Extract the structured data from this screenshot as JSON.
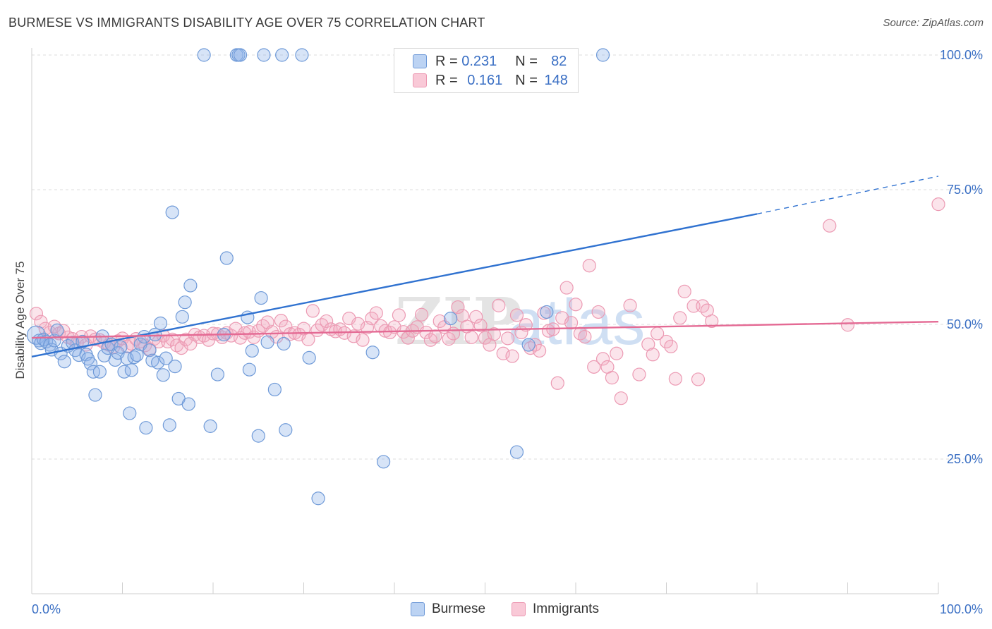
{
  "header": {
    "title": "BURMESE VS IMMIGRANTS DISABILITY AGE OVER 75 CORRELATION CHART",
    "source": "Source: ZipAtlas.com"
  },
  "legend": {
    "burmese": {
      "r_label": "R =",
      "r_value": "0.231",
      "n_label": "N =",
      "n_value": "82"
    },
    "immigrants": {
      "r_label": "R =",
      "r_value": "0.161",
      "n_label": "N =",
      "n_value": "148"
    }
  },
  "bottom_legend": {
    "burmese": "Burmese",
    "immigrants": "Immigrants"
  },
  "watermark": {
    "zip": "ZIP",
    "atlas": "atlas"
  },
  "colors": {
    "burmese": "#5b8fd9",
    "immigrants": "#ee8aa8",
    "blue_line": "#3072d0",
    "pink_line": "#e46a94",
    "tick_text": "#3a6fc4"
  },
  "chart_data": {
    "type": "scatter",
    "title": "BURMESE VS IMMIGRANTS DISABILITY AGE OVER 75 CORRELATION CHART",
    "xlabel": "",
    "ylabel": "Disability Age Over 75",
    "xlim": [
      0,
      100
    ],
    "ylim": [
      0,
      105
    ],
    "x_tick_labels": [
      "0.0%",
      "100.0%"
    ],
    "y_ticks": [
      25,
      50,
      75,
      100
    ],
    "y_tick_labels": [
      "25.0%",
      "50.0%",
      "75.0%",
      "100.0%"
    ],
    "grid": true,
    "legend_position": "top-center",
    "series": [
      {
        "name": "Burmese",
        "r": 0.231,
        "n": 82,
        "trend": {
          "x": [
            0,
            80,
            100
          ],
          "y": [
            44.0,
            70.5,
            77.5
          ],
          "dashed_from": 80
        },
        "points": [
          [
            0.5,
            48
          ],
          [
            0.8,
            47
          ],
          [
            1.0,
            46.5
          ],
          [
            1.3,
            47.2
          ],
          [
            1.6,
            46.8
          ],
          [
            2.0,
            46.2
          ],
          [
            2.2,
            45.3
          ],
          [
            2.5,
            47
          ],
          [
            2.8,
            48.9
          ],
          [
            3.2,
            44.6
          ],
          [
            3.6,
            43.1
          ],
          [
            4.0,
            46
          ],
          [
            4.5,
            46.6
          ],
          [
            4.8,
            45.2
          ],
          [
            5.2,
            44.3
          ],
          [
            5.6,
            46.8
          ],
          [
            6.0,
            44.4
          ],
          [
            6.2,
            43.6
          ],
          [
            6.5,
            42.7
          ],
          [
            6.8,
            41.2
          ],
          [
            7.0,
            36.9
          ],
          [
            7.5,
            41.2
          ],
          [
            7.8,
            47.8
          ],
          [
            8.0,
            44.2
          ],
          [
            8.4,
            45.6
          ],
          [
            8.8,
            46.3
          ],
          [
            9.2,
            43.4
          ],
          [
            9.5,
            44.7
          ],
          [
            9.8,
            45.8
          ],
          [
            10.2,
            41.2
          ],
          [
            10.5,
            43.7
          ],
          [
            10.8,
            33.5
          ],
          [
            11.0,
            41.5
          ],
          [
            11.3,
            43.9
          ],
          [
            11.6,
            44.3
          ],
          [
            12.0,
            46.3
          ],
          [
            12.4,
            47.7
          ],
          [
            12.6,
            30.8
          ],
          [
            13.0,
            45.2
          ],
          [
            13.3,
            43.3
          ],
          [
            13.6,
            48.1
          ],
          [
            13.9,
            42.9
          ],
          [
            14.2,
            50.2
          ],
          [
            14.5,
            40.6
          ],
          [
            14.8,
            43.7
          ],
          [
            15.2,
            31.3
          ],
          [
            15.5,
            70.8
          ],
          [
            15.8,
            42.2
          ],
          [
            16.2,
            36.2
          ],
          [
            16.6,
            51.4
          ],
          [
            16.9,
            54.1
          ],
          [
            17.3,
            35.2
          ],
          [
            17.5,
            57.2
          ],
          [
            19.0,
            100
          ],
          [
            19.7,
            31.1
          ],
          [
            20.5,
            40.7
          ],
          [
            21.2,
            48.1
          ],
          [
            21.5,
            62.3
          ],
          [
            22.6,
            100
          ],
          [
            22.8,
            100
          ],
          [
            23.0,
            100
          ],
          [
            23.8,
            51.3
          ],
          [
            24.0,
            41.6
          ],
          [
            24.3,
            45.1
          ],
          [
            25.0,
            29.3
          ],
          [
            25.3,
            54.9
          ],
          [
            25.6,
            100
          ],
          [
            26.0,
            46.7
          ],
          [
            26.8,
            37.9
          ],
          [
            27.6,
            100
          ],
          [
            27.8,
            46.4
          ],
          [
            28.0,
            30.4
          ],
          [
            29.8,
            100
          ],
          [
            30.6,
            43.8
          ],
          [
            31.6,
            17.7
          ],
          [
            37.6,
            44.8
          ],
          [
            38.8,
            24.5
          ],
          [
            46.2,
            51.1
          ],
          [
            53.5,
            26.3
          ],
          [
            54.8,
            46.2
          ],
          [
            56.8,
            52.3
          ],
          [
            63.0,
            100
          ]
        ]
      },
      {
        "name": "Immigrants",
        "r": 0.161,
        "n": 148,
        "trend": {
          "x": [
            0,
            100
          ],
          "y": [
            47.5,
            50.5
          ]
        },
        "points": [
          [
            0.5,
            52
          ],
          [
            1.0,
            50.5
          ],
          [
            1.5,
            49.2
          ],
          [
            2.0,
            48.5
          ],
          [
            2.5,
            49.6
          ],
          [
            3.0,
            48.3
          ],
          [
            3.5,
            48.8
          ],
          [
            4.0,
            47.6
          ],
          [
            4.5,
            47.3
          ],
          [
            5.0,
            46.6
          ],
          [
            5.5,
            47.7
          ],
          [
            6.0,
            46.2
          ],
          [
            6.5,
            47.8
          ],
          [
            7.0,
            47.2
          ],
          [
            7.5,
            47.1
          ],
          [
            8.0,
            46.6
          ],
          [
            8.5,
            46.2
          ],
          [
            9.0,
            45.8
          ],
          [
            9.5,
            46.9
          ],
          [
            10.0,
            47.4
          ],
          [
            10.5,
            45.9
          ],
          [
            11.0,
            46.4
          ],
          [
            11.5,
            47.3
          ],
          [
            12.0,
            46.8
          ],
          [
            12.5,
            46.1
          ],
          [
            13.0,
            45.4
          ],
          [
            13.5,
            47.3
          ],
          [
            14.0,
            46.8
          ],
          [
            14.5,
            47.9
          ],
          [
            15.0,
            46.8
          ],
          [
            15.5,
            47.2
          ],
          [
            16.0,
            46.1
          ],
          [
            16.5,
            45.6
          ],
          [
            17.0,
            47.2
          ],
          [
            17.5,
            46.4
          ],
          [
            18.0,
            48.1
          ],
          [
            18.5,
            47.6
          ],
          [
            19.0,
            47.9
          ],
          [
            19.5,
            47.1
          ],
          [
            20.0,
            48.3
          ],
          [
            20.5,
            48.2
          ],
          [
            21.0,
            47.6
          ],
          [
            21.5,
            48.4
          ],
          [
            22.0,
            47.9
          ],
          [
            22.5,
            49.2
          ],
          [
            23.0,
            47.5
          ],
          [
            23.5,
            48.4
          ],
          [
            24.0,
            48.6
          ],
          [
            24.5,
            47.6
          ],
          [
            25.0,
            48.8
          ],
          [
            25.5,
            49.7
          ],
          [
            26.0,
            50.4
          ],
          [
            26.5,
            48.6
          ],
          [
            27.0,
            47.7
          ],
          [
            27.5,
            50.7
          ],
          [
            28.0,
            49.6
          ],
          [
            28.5,
            48.2
          ],
          [
            29.0,
            48.4
          ],
          [
            29.5,
            48.1
          ],
          [
            30.0,
            49.2
          ],
          [
            30.5,
            47.2
          ],
          [
            31.0,
            52.5
          ],
          [
            31.5,
            48.9
          ],
          [
            32.0,
            49.9
          ],
          [
            32.5,
            50.6
          ],
          [
            33.0,
            49.1
          ],
          [
            33.5,
            48.7
          ],
          [
            34.0,
            49.1
          ],
          [
            34.5,
            48.4
          ],
          [
            35.0,
            51.1
          ],
          [
            35.5,
            47.8
          ],
          [
            36.0,
            50.1
          ],
          [
            36.5,
            47.1
          ],
          [
            37.0,
            49.4
          ],
          [
            37.5,
            51.1
          ],
          [
            38.0,
            52.1
          ],
          [
            38.5,
            49.7
          ],
          [
            39.0,
            48.8
          ],
          [
            39.5,
            48.5
          ],
          [
            40.0,
            49.5
          ],
          [
            40.5,
            51.7
          ],
          [
            41.0,
            48.6
          ],
          [
            41.5,
            47.5
          ],
          [
            42.0,
            48.8
          ],
          [
            42.5,
            49.5
          ],
          [
            43.0,
            51.8
          ],
          [
            43.5,
            48.5
          ],
          [
            44.0,
            47.1
          ],
          [
            44.5,
            47.8
          ],
          [
            45.0,
            50.6
          ],
          [
            45.5,
            49.5
          ],
          [
            46.0,
            47.3
          ],
          [
            46.5,
            48.3
          ],
          [
            47.0,
            53.2
          ],
          [
            47.5,
            51.6
          ],
          [
            48.0,
            49.6
          ],
          [
            48.5,
            47.6
          ],
          [
            49.0,
            51.4
          ],
          [
            49.5,
            49.8
          ],
          [
            50.0,
            47.5
          ],
          [
            50.5,
            46.2
          ],
          [
            51.0,
            48.2
          ],
          [
            51.5,
            53.5
          ],
          [
            52.0,
            44.6
          ],
          [
            52.5,
            47.4
          ],
          [
            53.0,
            44.1
          ],
          [
            53.5,
            51.7
          ],
          [
            54.0,
            48.5
          ],
          [
            54.5,
            49.9
          ],
          [
            55.0,
            45.6
          ],
          [
            55.5,
            46.2
          ],
          [
            56.0,
            45.1
          ],
          [
            56.5,
            52.1
          ],
          [
            57.0,
            48.8
          ],
          [
            57.5,
            49.1
          ],
          [
            58.0,
            39.1
          ],
          [
            58.5,
            51.2
          ],
          [
            59.0,
            56.8
          ],
          [
            59.5,
            50.3
          ],
          [
            60.0,
            53.7
          ],
          [
            60.5,
            48.3
          ],
          [
            61.0,
            47.7
          ],
          [
            61.5,
            60.9
          ],
          [
            62.0,
            42.1
          ],
          [
            62.5,
            52.3
          ],
          [
            63.0,
            43.6
          ],
          [
            63.5,
            42.1
          ],
          [
            64.0,
            40.1
          ],
          [
            64.5,
            44.6
          ],
          [
            65.0,
            36.3
          ],
          [
            66.0,
            53.5
          ],
          [
            67.0,
            40.7
          ],
          [
            68.0,
            46.3
          ],
          [
            68.5,
            44.4
          ],
          [
            69.0,
            48.3
          ],
          [
            70.0,
            46.8
          ],
          [
            70.5,
            45.9
          ],
          [
            71.0,
            39.9
          ],
          [
            71.5,
            51.2
          ],
          [
            72.0,
            56.1
          ],
          [
            73.0,
            53.4
          ],
          [
            74.0,
            53.4
          ],
          [
            75.0,
            50.6
          ],
          [
            88.0,
            68.3
          ],
          [
            90.0,
            49.9
          ],
          [
            100.0,
            72.3
          ],
          [
            74.5,
            52.6
          ],
          [
            73.5,
            39.8
          ]
        ]
      }
    ]
  }
}
